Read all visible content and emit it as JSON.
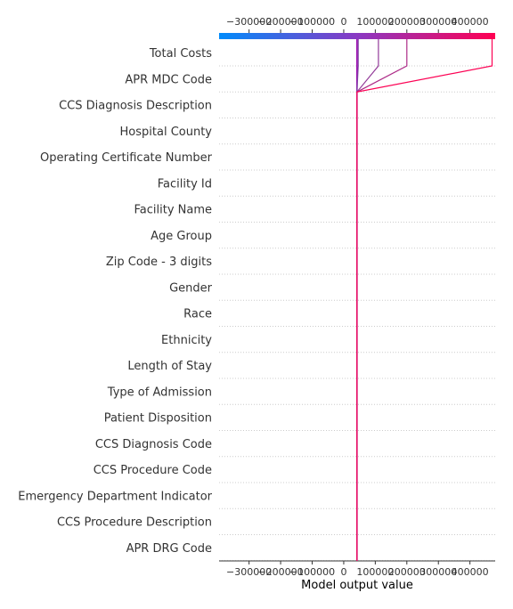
{
  "chart_data": {
    "type": "decision",
    "xlabel": "Model output value",
    "xlim": [
      -395000,
      480000
    ],
    "ticks": [
      {
        "value": -300000,
        "label": "−300000"
      },
      {
        "value": -200000,
        "label": "−200000"
      },
      {
        "value": -100000,
        "label": "−100000"
      },
      {
        "value": 0,
        "label": "0"
      },
      {
        "value": 100000,
        "label": "100000"
      },
      {
        "value": 200000,
        "label": "200000"
      },
      {
        "value": 300000,
        "label": "300000"
      },
      {
        "value": 400000,
        "label": "400000"
      }
    ],
    "features": [
      "Total Costs",
      "APR MDC Code",
      "CCS Diagnosis Description",
      "Hospital County",
      "Operating Certificate Number",
      "Facility Id",
      "Facility Name",
      "Age Group",
      "Zip Code - 3 digits",
      "Gender",
      "Race",
      "Ethnicity",
      "Length of Stay",
      "Type of Admission",
      "Patient Disposition",
      "CCS Diagnosis Code",
      "CCS Procedure Code",
      "Emergency Department Indicator",
      "CCS Procedure Description",
      "APR DRG Code"
    ],
    "base_value": 42000,
    "series": [
      {
        "values": [
          46000,
          42000,
          42000,
          42000,
          42000,
          42000,
          42000,
          42000,
          42000,
          42000,
          42000,
          42000,
          42000,
          42000,
          42000,
          42000,
          42000,
          42000,
          42000,
          42000
        ]
      },
      {
        "values": [
          110000,
          42000,
          42000,
          42000,
          42000,
          42000,
          42000,
          42000,
          42000,
          42000,
          42000,
          42000,
          42000,
          42000,
          42000,
          42000,
          42000,
          42000,
          42000,
          42000
        ]
      },
      {
        "values": [
          200000,
          42000,
          42000,
          42000,
          42000,
          42000,
          42000,
          42000,
          42000,
          42000,
          42000,
          42000,
          42000,
          42000,
          42000,
          42000,
          42000,
          42000,
          42000,
          42000
        ]
      },
      {
        "values": [
          470000,
          42000,
          42000,
          42000,
          42000,
          42000,
          42000,
          42000,
          42000,
          42000,
          42000,
          42000,
          42000,
          42000,
          42000,
          42000,
          42000,
          42000,
          42000,
          42000
        ]
      }
    ],
    "colormap": [
      "#008bfb",
      "#ff0052"
    ]
  }
}
